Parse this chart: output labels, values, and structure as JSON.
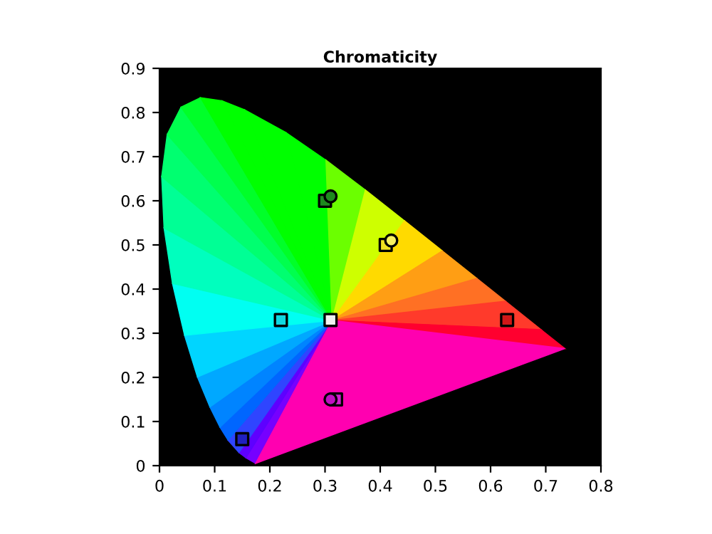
{
  "chart_data": {
    "type": "scatter",
    "title": "Chromaticity",
    "xlim": [
      0,
      0.8
    ],
    "ylim": [
      0,
      0.9
    ],
    "xticks": [
      0,
      0.1,
      0.2,
      0.3,
      0.4,
      0.5,
      0.6,
      0.7,
      0.8
    ],
    "yticks": [
      0,
      0.1,
      0.2,
      0.3,
      0.4,
      0.5,
      0.6,
      0.7,
      0.8,
      0.9
    ],
    "grid": false,
    "legend": false,
    "series": [
      {
        "marker": "square",
        "x": [
          0.63,
          0.3,
          0.15,
          0.22,
          0.31,
          0.32,
          0.41
        ],
        "values": [
          0.33,
          0.6,
          0.06,
          0.33,
          0.33,
          0.15,
          0.5
        ],
        "colors": [
          "#d01818",
          "#1e8a1e",
          "#2020c0",
          "#10d8e0",
          "#f0f0f0",
          "#d020d0",
          "#f0e020"
        ]
      },
      {
        "marker": "circle",
        "x": [
          0.31,
          0.42,
          0.31
        ],
        "values": [
          0.61,
          0.51,
          0.15
        ],
        "colors": [
          "#1e8a1e",
          "#f8f060",
          "#c010c0"
        ]
      }
    ]
  }
}
